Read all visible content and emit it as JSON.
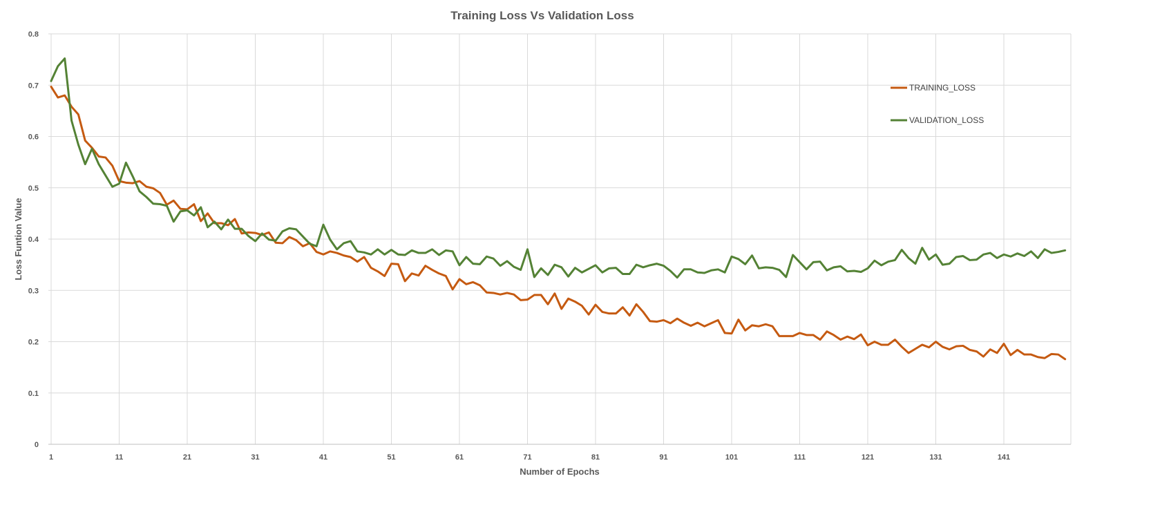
{
  "chart_data": {
    "type": "line",
    "title": "Training Loss Vs Validation Loss",
    "xlabel": "Number of Epochs",
    "ylabel": "Loss Funtion Value",
    "xlim": [
      1,
      150
    ],
    "ylim": [
      0,
      0.8
    ],
    "x_tick_labels": [
      "1",
      "11",
      "21",
      "31",
      "41",
      "51",
      "61",
      "71",
      "81",
      "91",
      "101",
      "111",
      "121",
      "131",
      "141"
    ],
    "y_tick_labels": [
      "0",
      "0.1",
      "0.2",
      "0.3",
      "0.4",
      "0.5",
      "0.6",
      "0.7",
      "0.8"
    ],
    "grid": "both",
    "legend_position": "top-right",
    "series": [
      {
        "name": "TRAINING_LOSS",
        "color": "#C55A11",
        "values": [
          0.697,
          0.676,
          0.68,
          0.658,
          0.643,
          0.592,
          0.578,
          0.561,
          0.559,
          0.543,
          0.513,
          0.51,
          0.509,
          0.513,
          0.502,
          0.499,
          0.49,
          0.467,
          0.475,
          0.459,
          0.458,
          0.468,
          0.435,
          0.45,
          0.431,
          0.431,
          0.427,
          0.439,
          0.411,
          0.413,
          0.412,
          0.408,
          0.413,
          0.393,
          0.392,
          0.404,
          0.398,
          0.386,
          0.392,
          0.375,
          0.37,
          0.376,
          0.373,
          0.368,
          0.365,
          0.356,
          0.365,
          0.344,
          0.337,
          0.328,
          0.352,
          0.351,
          0.318,
          0.333,
          0.329,
          0.348,
          0.34,
          0.333,
          0.328,
          0.302,
          0.322,
          0.312,
          0.316,
          0.31,
          0.296,
          0.295,
          0.292,
          0.295,
          0.292,
          0.281,
          0.282,
          0.291,
          0.291,
          0.273,
          0.294,
          0.264,
          0.284,
          0.278,
          0.27,
          0.253,
          0.272,
          0.258,
          0.255,
          0.255,
          0.267,
          0.251,
          0.273,
          0.258,
          0.24,
          0.239,
          0.242,
          0.236,
          0.245,
          0.237,
          0.231,
          0.237,
          0.23,
          0.236,
          0.242,
          0.217,
          0.216,
          0.243,
          0.222,
          0.232,
          0.23,
          0.234,
          0.23,
          0.211,
          0.211,
          0.211,
          0.217,
          0.213,
          0.213,
          0.204,
          0.22,
          0.213,
          0.204,
          0.21,
          0.205,
          0.214,
          0.193,
          0.2,
          0.194,
          0.194,
          0.204,
          0.19,
          0.178,
          0.186,
          0.194,
          0.189,
          0.2,
          0.19,
          0.185,
          0.191,
          0.192,
          0.184,
          0.181,
          0.171,
          0.185,
          0.178,
          0.196,
          0.174,
          0.184,
          0.175,
          0.175,
          0.17,
          0.168,
          0.176,
          0.175,
          0.166
        ]
      },
      {
        "name": "VALIDATION_LOSS",
        "color": "#548235",
        "values": [
          0.708,
          0.737,
          0.752,
          0.631,
          0.584,
          0.546,
          0.576,
          0.546,
          0.524,
          0.502,
          0.508,
          0.549,
          0.522,
          0.493,
          0.482,
          0.469,
          0.468,
          0.465,
          0.434,
          0.454,
          0.456,
          0.446,
          0.462,
          0.423,
          0.434,
          0.419,
          0.438,
          0.42,
          0.42,
          0.406,
          0.396,
          0.411,
          0.399,
          0.397,
          0.415,
          0.421,
          0.419,
          0.405,
          0.391,
          0.386,
          0.428,
          0.399,
          0.38,
          0.392,
          0.396,
          0.376,
          0.374,
          0.37,
          0.38,
          0.37,
          0.379,
          0.37,
          0.369,
          0.378,
          0.373,
          0.373,
          0.38,
          0.369,
          0.378,
          0.376,
          0.349,
          0.365,
          0.352,
          0.351,
          0.366,
          0.362,
          0.348,
          0.357,
          0.346,
          0.34,
          0.38,
          0.326,
          0.343,
          0.33,
          0.35,
          0.345,
          0.327,
          0.344,
          0.335,
          0.342,
          0.349,
          0.335,
          0.343,
          0.344,
          0.332,
          0.332,
          0.35,
          0.345,
          0.349,
          0.352,
          0.348,
          0.338,
          0.325,
          0.341,
          0.341,
          0.335,
          0.334,
          0.339,
          0.341,
          0.335,
          0.366,
          0.361,
          0.351,
          0.368,
          0.343,
          0.345,
          0.344,
          0.34,
          0.326,
          0.369,
          0.355,
          0.341,
          0.355,
          0.356,
          0.339,
          0.345,
          0.347,
          0.337,
          0.338,
          0.336,
          0.343,
          0.358,
          0.349,
          0.356,
          0.359,
          0.379,
          0.363,
          0.352,
          0.383,
          0.36,
          0.37,
          0.35,
          0.352,
          0.365,
          0.367,
          0.359,
          0.36,
          0.37,
          0.373,
          0.363,
          0.37,
          0.366,
          0.372,
          0.367,
          0.376,
          0.363,
          0.38,
          0.373,
          0.375,
          0.378
        ]
      }
    ]
  }
}
